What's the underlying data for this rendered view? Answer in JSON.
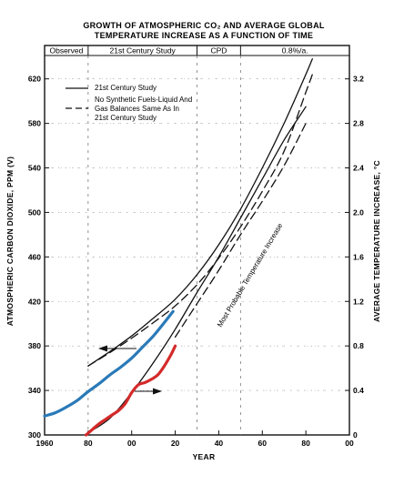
{
  "chart_data": {
    "type": "line",
    "title": [
      "GROWTH OF ATMOSPHERIC CO₂ AND AVERAGE GLOBAL",
      "TEMPERATURE INCREASE AS A FUNCTION OF TIME"
    ],
    "xlabel": "YEAR",
    "ylabel": "ATMOSPHERIC CARBON DIOXIDE, PPM (V)",
    "y2label": "AVERAGE TEMPERATURE INCREASE, °C",
    "xlim": [
      1960,
      2100
    ],
    "ylim": [
      300,
      650
    ],
    "y2lim": [
      0,
      3.5
    ],
    "x_ticks": [
      1960,
      1980,
      2000,
      2020,
      2040,
      2060,
      2080,
      2100
    ],
    "x_tick_labels": [
      "1960",
      "80",
      "00",
      "20",
      "40",
      "60",
      "80",
      "00"
    ],
    "y_ticks": [
      300,
      340,
      380,
      420,
      460,
      500,
      540,
      580,
      620
    ],
    "y2_ticks": [
      0,
      0.4,
      0.8,
      1.2,
      1.6,
      2.0,
      2.4,
      2.8,
      3.2
    ],
    "periods": [
      {
        "label": "Observed",
        "start": 1960,
        "end": 1980
      },
      {
        "label": "21st Century Study",
        "start": 1980,
        "end": 2030
      },
      {
        "label": "CPD",
        "start": 2030,
        "end": 2050
      },
      {
        "label": "0.8%/a.",
        "start": 2050,
        "end": 2100
      }
    ],
    "legend": [
      {
        "label": "21st Century Study",
        "style": "solid"
      },
      {
        "label": "No Synthetic Fuels-Liquid And Gas Balances Same As In 21st Century Study",
        "style": "dashed"
      }
    ],
    "annotation": "Most Probable Temperature Increase",
    "series": [
      {
        "axis": "left",
        "style": "solid",
        "color": "#111111",
        "x": [
          1980,
          1990,
          2000,
          2010,
          2020,
          2030,
          2040,
          2050,
          2060,
          2070,
          2080,
          2083
        ],
        "y": [
          362,
          375,
          389,
          405,
          422,
          444,
          471,
          503,
          540,
          580,
          624,
          638
        ]
      },
      {
        "axis": "left",
        "style": "dashed",
        "color": "#111111",
        "x": [
          1980,
          1990,
          2000,
          2010,
          2020,
          2030,
          2040,
          2050,
          2060,
          2070,
          2080,
          2083
        ],
        "y": [
          362,
          374,
          387,
          401,
          416,
          435,
          459,
          487,
          519,
          555,
          608,
          624
        ]
      },
      {
        "axis": "right",
        "style": "solid",
        "color": "#111111",
        "x": [
          1980,
          1990,
          2000,
          2010,
          2020,
          2030,
          2040,
          2050,
          2060,
          2070,
          2080
        ],
        "y": [
          0.02,
          0.15,
          0.38,
          0.65,
          0.95,
          1.28,
          1.6,
          1.95,
          2.3,
          2.65,
          2.95
        ]
      },
      {
        "axis": "right",
        "style": "dashed",
        "color": "#111111",
        "x": [
          2020,
          2030,
          2040,
          2050,
          2060,
          2070,
          2080
        ],
        "y": [
          0.88,
          1.18,
          1.48,
          1.8,
          2.1,
          2.42,
          2.8
        ]
      },
      {
        "axis": "left",
        "style": "solid",
        "color": "#2a7ab8",
        "x": [
          1960,
          1965,
          1970,
          1975,
          1980,
          1985,
          1990,
          1995,
          2000,
          2005,
          2010,
          2015,
          2019
        ],
        "y": [
          317,
          320,
          325,
          331,
          339,
          346,
          354,
          361,
          369,
          379,
          389,
          401,
          411
        ]
      },
      {
        "axis": "right",
        "style": "solid",
        "color": "#d42a2a",
        "x": [
          1979,
          1982,
          1985,
          1988,
          1991,
          1994,
          1997,
          2000,
          2003,
          2006,
          2009,
          2012,
          2015,
          2018,
          2020
        ],
        "y": [
          0.0,
          0.05,
          0.1,
          0.14,
          0.18,
          0.22,
          0.28,
          0.38,
          0.45,
          0.47,
          0.5,
          0.54,
          0.62,
          0.72,
          0.8
        ]
      }
    ]
  }
}
